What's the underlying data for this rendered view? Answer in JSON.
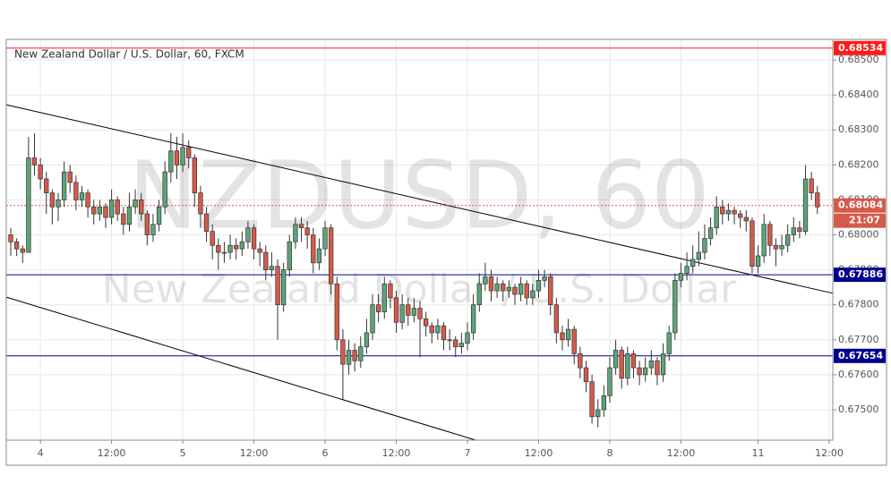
{
  "chart_data": {
    "type": "candlestick",
    "title": "New Zealand Dollar / U.S. Dollar, 60, FXCM",
    "watermark": "NZDUSD, 60",
    "watermark_subtitle": "New Zealand Dollar / U.S. Dollar",
    "up_color": "#5ea37a",
    "down_color": "#d65a4a",
    "grid": true,
    "xlim": [
      -0.755,
      138.6
    ],
    "ylim": [
      0.67413,
      0.68559
    ],
    "yticks": [
      {
        "value": 0.675,
        "label": "0.67500"
      },
      {
        "value": 0.676,
        "label": "0.67600"
      },
      {
        "value": 0.677,
        "label": "0.67700"
      },
      {
        "value": 0.678,
        "label": "0.67800"
      },
      {
        "value": 0.679,
        "label": "0.67900"
      },
      {
        "value": 0.68,
        "label": "0.68000"
      },
      {
        "value": 0.681,
        "label": "0.68100"
      },
      {
        "value": 0.682,
        "label": "0.68200"
      },
      {
        "value": 0.683,
        "label": "0.68300"
      },
      {
        "value": 0.684,
        "label": "0.68400"
      },
      {
        "value": 0.685,
        "label": "0.68500"
      }
    ],
    "xticks": [
      {
        "value": 5,
        "label": "4"
      },
      {
        "value": 17,
        "label": "12:00"
      },
      {
        "value": 29,
        "label": "5"
      },
      {
        "value": 41,
        "label": "12:00"
      },
      {
        "value": 53,
        "label": "6"
      },
      {
        "value": 65,
        "label": "12:00"
      },
      {
        "value": 77,
        "label": "7"
      },
      {
        "value": 89,
        "label": "12:00"
      },
      {
        "value": 101,
        "label": "8"
      },
      {
        "value": 113,
        "label": "12:00"
      },
      {
        "value": 126,
        "label": "11"
      },
      {
        "value": 138,
        "label": "12:00"
      }
    ],
    "x": [
      0,
      1,
      2,
      3,
      4,
      5,
      6,
      7,
      8,
      9,
      10,
      11,
      12,
      13,
      14,
      15,
      16,
      17,
      18,
      19,
      20,
      21,
      22,
      23,
      24,
      25,
      26,
      27,
      28,
      29,
      30,
      31,
      32,
      33,
      34,
      35,
      36,
      37,
      38,
      39,
      40,
      41,
      42,
      43,
      44,
      45,
      46,
      47,
      48,
      49,
      50,
      51,
      52,
      53,
      54,
      55,
      56,
      57,
      58,
      59,
      60,
      61,
      62,
      63,
      64,
      65,
      66,
      67,
      68,
      69,
      70,
      71,
      72,
      73,
      74,
      75,
      76,
      77,
      78,
      79,
      80,
      81,
      82,
      83,
      84,
      85,
      86,
      87,
      88,
      89,
      90,
      91,
      92,
      93,
      94,
      95,
      96,
      97,
      98,
      99,
      100,
      101,
      102,
      103,
      104,
      105,
      106,
      107,
      108,
      109,
      110,
      111,
      112,
      113,
      114,
      115,
      116,
      117,
      118,
      119,
      120,
      121,
      122,
      123,
      124,
      125,
      126,
      127,
      128,
      129,
      130,
      131,
      132,
      133,
      134,
      135,
      136
    ],
    "candles": [
      [
        0.68,
        0.6802,
        0.6794,
        0.6798
      ],
      [
        0.6798,
        0.6799,
        0.6794,
        0.6796
      ],
      [
        0.6796,
        0.6797,
        0.6792,
        0.6795
      ],
      [
        0.6795,
        0.6828,
        0.6795,
        0.6822
      ],
      [
        0.6822,
        0.6829,
        0.6817,
        0.682
      ],
      [
        0.682,
        0.6822,
        0.6813,
        0.6816
      ],
      [
        0.6816,
        0.6818,
        0.6806,
        0.6812
      ],
      [
        0.6812,
        0.6813,
        0.6803,
        0.6808
      ],
      [
        0.6808,
        0.6812,
        0.6804,
        0.681
      ],
      [
        0.681,
        0.6821,
        0.6808,
        0.6818
      ],
      [
        0.6818,
        0.682,
        0.6812,
        0.6815
      ],
      [
        0.6815,
        0.6817,
        0.6807,
        0.681
      ],
      [
        0.681,
        0.6814,
        0.6808,
        0.6812
      ],
      [
        0.6812,
        0.6813,
        0.6805,
        0.6808
      ],
      [
        0.6808,
        0.681,
        0.6803,
        0.6806
      ],
      [
        0.6806,
        0.681,
        0.6804,
        0.6808
      ],
      [
        0.6808,
        0.6809,
        0.6802,
        0.6805
      ],
      [
        0.6805,
        0.6813,
        0.6803,
        0.681
      ],
      [
        0.681,
        0.6811,
        0.6804,
        0.6806
      ],
      [
        0.6806,
        0.6808,
        0.68,
        0.6803
      ],
      [
        0.6803,
        0.6812,
        0.6801,
        0.6808
      ],
      [
        0.6808,
        0.6813,
        0.6806,
        0.681
      ],
      [
        0.681,
        0.6812,
        0.6804,
        0.6806
      ],
      [
        0.6806,
        0.6807,
        0.6797,
        0.68
      ],
      [
        0.68,
        0.6806,
        0.6798,
        0.6803
      ],
      [
        0.6803,
        0.681,
        0.6801,
        0.6808
      ],
      [
        0.6808,
        0.6821,
        0.6806,
        0.6818
      ],
      [
        0.6818,
        0.6829,
        0.6815,
        0.6824
      ],
      [
        0.6824,
        0.6828,
        0.6816,
        0.682
      ],
      [
        0.682,
        0.6829,
        0.6818,
        0.6825
      ],
      [
        0.6825,
        0.6827,
        0.6819,
        0.6822
      ],
      [
        0.6822,
        0.6823,
        0.6808,
        0.6812
      ],
      [
        0.6812,
        0.6814,
        0.6802,
        0.6806
      ],
      [
        0.6806,
        0.6808,
        0.6798,
        0.6801
      ],
      [
        0.6801,
        0.6803,
        0.6793,
        0.6797
      ],
      [
        0.6797,
        0.6799,
        0.679,
        0.6795
      ],
      [
        0.6795,
        0.6798,
        0.6792,
        0.6795
      ],
      [
        0.6795,
        0.68,
        0.6793,
        0.6797
      ],
      [
        0.6797,
        0.6799,
        0.6793,
        0.6796
      ],
      [
        0.6796,
        0.6801,
        0.6794,
        0.6798
      ],
      [
        0.6798,
        0.6804,
        0.6796,
        0.6802
      ],
      [
        0.6802,
        0.6803,
        0.6793,
        0.6796
      ],
      [
        0.6796,
        0.6798,
        0.6791,
        0.6795
      ],
      [
        0.6795,
        0.6797,
        0.6787,
        0.679
      ],
      [
        0.679,
        0.6795,
        0.6788,
        0.6791
      ],
      [
        0.6791,
        0.6793,
        0.677,
        0.678
      ],
      [
        0.678,
        0.6792,
        0.6778,
        0.679
      ],
      [
        0.679,
        0.68,
        0.6788,
        0.6798
      ],
      [
        0.6798,
        0.6805,
        0.6796,
        0.6803
      ],
      [
        0.6803,
        0.6805,
        0.6798,
        0.6802
      ],
      [
        0.6802,
        0.6804,
        0.6796,
        0.68
      ],
      [
        0.68,
        0.6802,
        0.6789,
        0.6792
      ],
      [
        0.6792,
        0.6799,
        0.679,
        0.6796
      ],
      [
        0.6796,
        0.6804,
        0.6794,
        0.6802
      ],
      [
        0.6802,
        0.6803,
        0.6783,
        0.6786
      ],
      [
        0.6786,
        0.6788,
        0.6767,
        0.677
      ],
      [
        0.677,
        0.6773,
        0.6753,
        0.6763
      ],
      [
        0.6763,
        0.677,
        0.676,
        0.6767
      ],
      [
        0.6767,
        0.6769,
        0.6761,
        0.6764
      ],
      [
        0.6764,
        0.6771,
        0.6762,
        0.6768
      ],
      [
        0.6768,
        0.6776,
        0.6766,
        0.6772
      ],
      [
        0.6772,
        0.6783,
        0.677,
        0.678
      ],
      [
        0.678,
        0.6783,
        0.6775,
        0.6778
      ],
      [
        0.6778,
        0.6788,
        0.6776,
        0.6786
      ],
      [
        0.6786,
        0.6787,
        0.6779,
        0.6782
      ],
      [
        0.6782,
        0.6784,
        0.6772,
        0.6775
      ],
      [
        0.6775,
        0.6783,
        0.6773,
        0.678
      ],
      [
        0.678,
        0.6782,
        0.6774,
        0.6777
      ],
      [
        0.6777,
        0.6782,
        0.6775,
        0.6779
      ],
      [
        0.6779,
        0.6781,
        0.6765,
        0.6776
      ],
      [
        0.6776,
        0.6778,
        0.6771,
        0.6774
      ],
      [
        0.6774,
        0.6775,
        0.6769,
        0.6772
      ],
      [
        0.6772,
        0.6776,
        0.677,
        0.6774
      ],
      [
        0.6774,
        0.6775,
        0.6767,
        0.677
      ],
      [
        0.677,
        0.6773,
        0.6767,
        0.677
      ],
      [
        0.677,
        0.6771,
        0.6765,
        0.6768
      ],
      [
        0.6768,
        0.6772,
        0.6766,
        0.6769
      ],
      [
        0.6769,
        0.6775,
        0.6767,
        0.6772
      ],
      [
        0.6772,
        0.6783,
        0.677,
        0.678
      ],
      [
        0.678,
        0.6789,
        0.6778,
        0.6786
      ],
      [
        0.6786,
        0.6792,
        0.6784,
        0.6788
      ],
      [
        0.6788,
        0.679,
        0.6781,
        0.6784
      ],
      [
        0.6784,
        0.6788,
        0.6782,
        0.6786
      ],
      [
        0.6786,
        0.6787,
        0.6781,
        0.6784
      ],
      [
        0.6784,
        0.6787,
        0.6782,
        0.6785
      ],
      [
        0.6785,
        0.6786,
        0.678,
        0.6783
      ],
      [
        0.6783,
        0.6788,
        0.6781,
        0.6786
      ],
      [
        0.6786,
        0.6787,
        0.678,
        0.6782
      ],
      [
        0.6782,
        0.6786,
        0.678,
        0.6784
      ],
      [
        0.6784,
        0.679,
        0.6782,
        0.6787
      ],
      [
        0.6787,
        0.679,
        0.6785,
        0.6788
      ],
      [
        0.6788,
        0.6789,
        0.6777,
        0.678
      ],
      [
        0.678,
        0.6782,
        0.6769,
        0.6772
      ],
      [
        0.6772,
        0.6774,
        0.6767,
        0.677
      ],
      [
        0.677,
        0.6776,
        0.6768,
        0.6773
      ],
      [
        0.6773,
        0.6774,
        0.6763,
        0.6766
      ],
      [
        0.6766,
        0.6768,
        0.6759,
        0.6762
      ],
      [
        0.6762,
        0.6764,
        0.6755,
        0.6758
      ],
      [
        0.6758,
        0.676,
        0.6746,
        0.6748
      ],
      [
        0.6748,
        0.6753,
        0.6745,
        0.675
      ],
      [
        0.675,
        0.6757,
        0.6748,
        0.6754
      ],
      [
        0.6754,
        0.6765,
        0.6752,
        0.6762
      ],
      [
        0.6762,
        0.677,
        0.676,
        0.6767
      ],
      [
        0.6767,
        0.6768,
        0.6756,
        0.6759
      ],
      [
        0.6759,
        0.6768,
        0.6757,
        0.6766
      ],
      [
        0.6766,
        0.6767,
        0.6759,
        0.6762
      ],
      [
        0.6762,
        0.6764,
        0.6757,
        0.676
      ],
      [
        0.676,
        0.6765,
        0.6758,
        0.6762
      ],
      [
        0.6762,
        0.6767,
        0.676,
        0.6764
      ],
      [
        0.6764,
        0.6765,
        0.6757,
        0.676
      ],
      [
        0.676,
        0.6769,
        0.6758,
        0.6766
      ],
      [
        0.6766,
        0.6774,
        0.6764,
        0.6772
      ],
      [
        0.6772,
        0.6789,
        0.677,
        0.6787
      ],
      [
        0.6787,
        0.6792,
        0.6785,
        0.6789
      ],
      [
        0.6789,
        0.6795,
        0.6787,
        0.6791
      ],
      [
        0.6791,
        0.6797,
        0.6789,
        0.6793
      ],
      [
        0.6793,
        0.6801,
        0.6791,
        0.6795
      ],
      [
        0.6795,
        0.6803,
        0.6793,
        0.6799
      ],
      [
        0.6799,
        0.6805,
        0.6797,
        0.6802
      ],
      [
        0.6802,
        0.6811,
        0.68,
        0.6808
      ],
      [
        0.6808,
        0.681,
        0.6803,
        0.6806
      ],
      [
        0.6806,
        0.6809,
        0.6804,
        0.6807
      ],
      [
        0.6807,
        0.6808,
        0.6803,
        0.6806
      ],
      [
        0.6806,
        0.6807,
        0.6802,
        0.6805
      ],
      [
        0.6805,
        0.6807,
        0.6801,
        0.6804
      ],
      [
        0.6804,
        0.6805,
        0.6789,
        0.6791
      ],
      [
        0.6791,
        0.6797,
        0.6789,
        0.6794
      ],
      [
        0.6794,
        0.6806,
        0.6792,
        0.6803
      ],
      [
        0.6803,
        0.6804,
        0.6794,
        0.6797
      ],
      [
        0.6797,
        0.6799,
        0.6791,
        0.6796
      ],
      [
        0.6796,
        0.68,
        0.6794,
        0.6797
      ],
      [
        0.6797,
        0.6803,
        0.6795,
        0.68
      ],
      [
        0.68,
        0.6805,
        0.6798,
        0.6802
      ],
      [
        0.6802,
        0.6804,
        0.6799,
        0.6801
      ],
      [
        0.6801,
        0.682,
        0.68,
        0.6816
      ],
      [
        0.6816,
        0.6818,
        0.681,
        0.6812
      ],
      [
        0.6812,
        0.6814,
        0.6806,
        0.6808
      ]
    ],
    "price_lines": [
      {
        "value": 0.68534,
        "color": "#ff1a1a",
        "style": "solid"
      },
      {
        "value": 0.68084,
        "color": "#d65a4a",
        "style": "dotted",
        "sublabel": "21:07"
      },
      {
        "value": 0.67886,
        "color": "#00008b",
        "style": "solid"
      },
      {
        "value": 0.67654,
        "color": "#00008b",
        "style": "solid"
      }
    ],
    "trend_lines": [
      {
        "x": [
          -0.755,
          138.6
        ],
        "y": [
          0.68372,
          0.67833
        ]
      },
      {
        "x": [
          -0.755,
          78.4
        ],
        "y": [
          0.67822,
          0.67413
        ]
      }
    ]
  }
}
